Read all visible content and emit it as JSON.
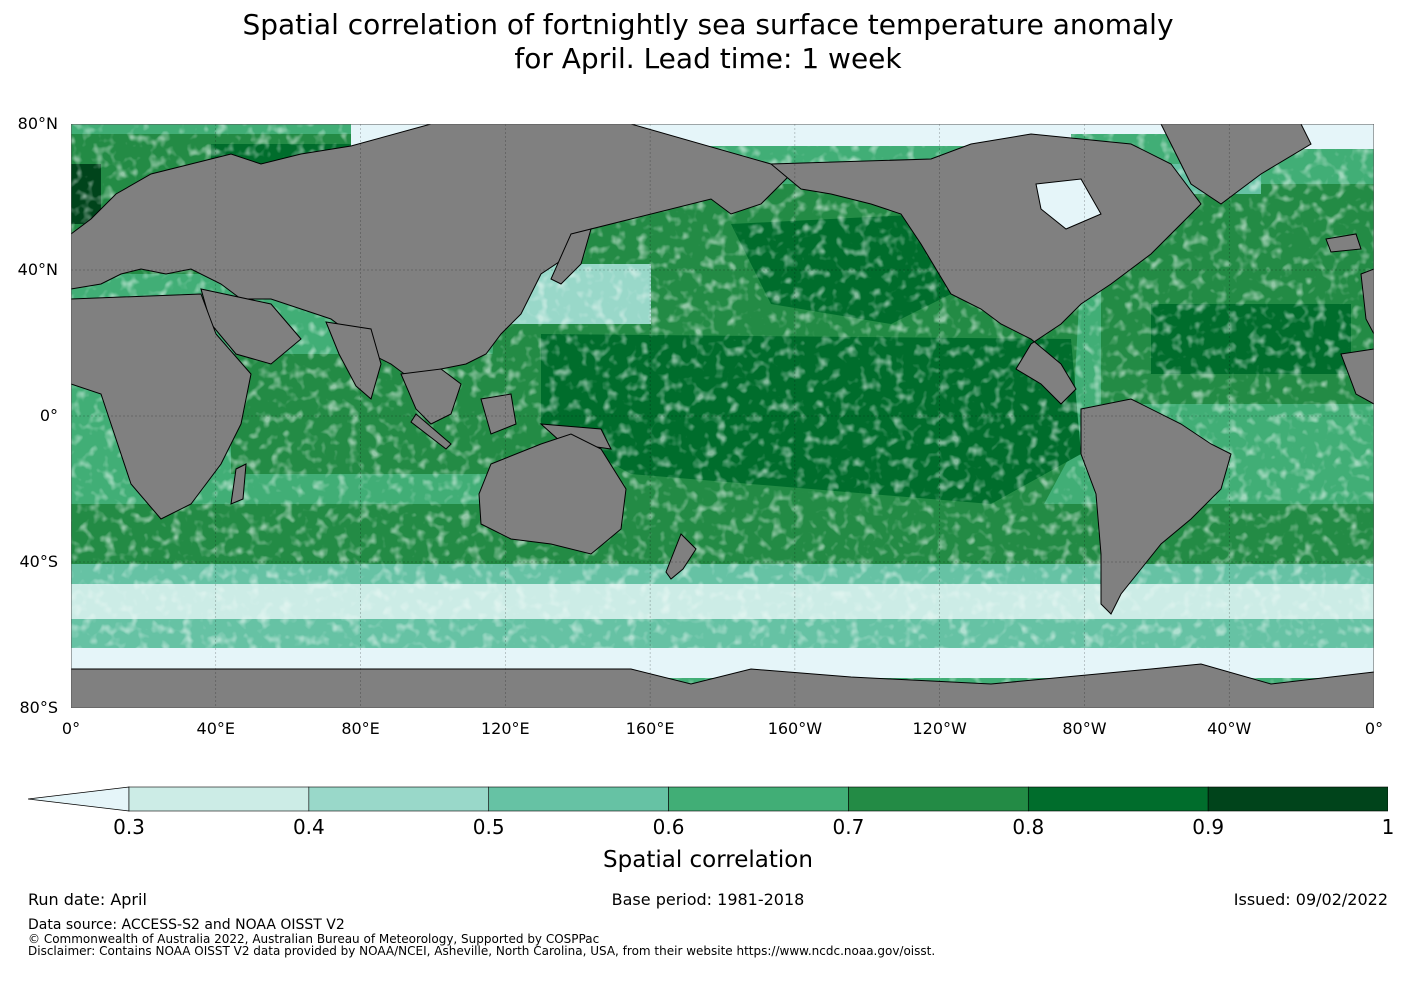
{
  "title_line1": "Spatial correlation of fortnightly sea surface temperature anomaly",
  "title_line2": "for April. Lead time: 1 week",
  "map": {
    "lat_labels": [
      "80°N",
      "40°N",
      "0°",
      "40°S",
      "80°S"
    ],
    "lon_labels": [
      "0°",
      "40°E",
      "80°E",
      "120°E",
      "160°E",
      "160°W",
      "120°W",
      "80°W",
      "40°W",
      "0°"
    ],
    "lat_range": [
      -80,
      80
    ],
    "lon_range": [
      0,
      360
    ],
    "gridlines": true,
    "land_color": "#808080",
    "sea_ice_color": "#e5f5f9"
  },
  "colorbar": {
    "label": "Spatial correlation",
    "ticks": [
      "0.3",
      "0.4",
      "0.5",
      "0.6",
      "0.7",
      "0.8",
      "0.9",
      "1"
    ],
    "under_color": "#e5f5f9",
    "colors": [
      "#ccece6",
      "#99d8c9",
      "#66c2a4",
      "#41ae76",
      "#238b45",
      "#006d2c",
      "#00441b"
    ],
    "extend": "min"
  },
  "meta": {
    "run_date": "Run date: April",
    "base_period": "Base period: 1981-2018",
    "issued": "Issued: 09/02/2022"
  },
  "footer": {
    "source": "Data source: ACCESS-S2 and NOAA OISST V2",
    "copyright": "© Commonwealth of Australia 2022, Australian Bureau of Meteorology, Supported by COSPPac",
    "disclaimer": "Disclaimer: Contains NOAA OISST V2 data provided by NOAA/NCEI, Asheville, North Carolina, USA, from their website https://www.ncdc.noaa.gov/oisst."
  }
}
